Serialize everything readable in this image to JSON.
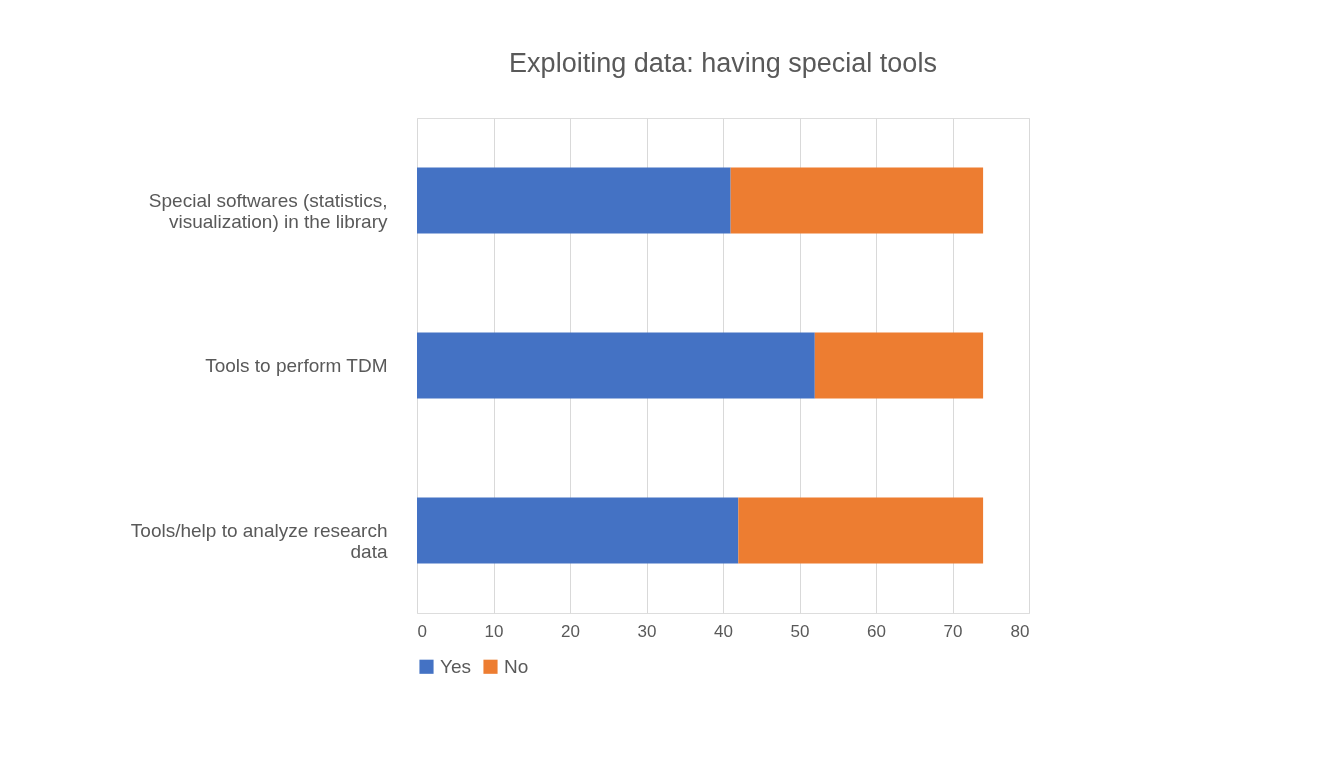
{
  "chart_data": {
    "type": "bar",
    "orientation": "horizontal",
    "stacked": true,
    "title": "Exploiting data: having special tools",
    "categories": [
      "Special softwares (statistics, visualization) in the library",
      "Tools to perform TDM",
      "Tools/help to analyze research data"
    ],
    "series": [
      {
        "name": "Yes",
        "color": "#4472c4",
        "values": [
          41,
          52,
          42
        ]
      },
      {
        "name": "No",
        "color": "#ed7d31",
        "values": [
          33,
          22,
          32
        ]
      }
    ],
    "xlim": [
      0,
      80
    ],
    "xticks": [
      0,
      10,
      20,
      30,
      40,
      50,
      60,
      70,
      80
    ],
    "grid": "x",
    "legend": "bottom"
  }
}
